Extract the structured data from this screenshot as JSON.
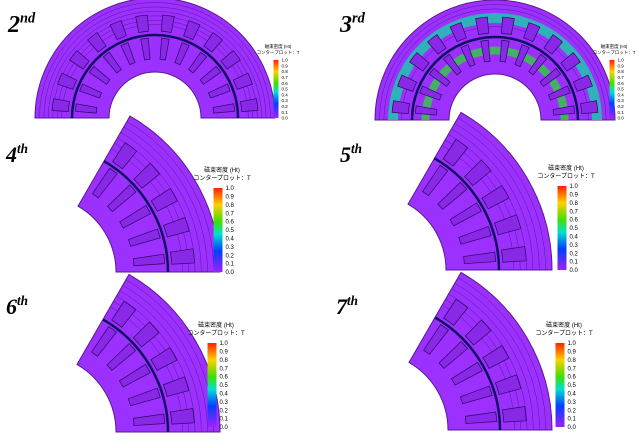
{
  "panels": [
    {
      "number": "2",
      "suffix": "nd"
    },
    {
      "number": "3",
      "suffix": "rd"
    },
    {
      "number": "4",
      "suffix": "th"
    },
    {
      "number": "5",
      "suffix": "th"
    },
    {
      "number": "6",
      "suffix": "th"
    },
    {
      "number": "7",
      "suffix": "th"
    }
  ],
  "legend": {
    "title": "磁束密度 (Ht)",
    "unit": "コンタープロット：T",
    "ticks": [
      {
        "value": 1.0,
        "label": "1.0"
      },
      {
        "value": 0.9,
        "label": "0.9"
      },
      {
        "value": 0.8,
        "label": "0.8"
      },
      {
        "value": 0.7,
        "label": "0.7"
      },
      {
        "value": 0.6,
        "label": "0.6"
      },
      {
        "value": 0.5,
        "label": "0.5"
      },
      {
        "value": 0.4,
        "label": "0.4"
      },
      {
        "value": 0.3,
        "label": "0.3"
      },
      {
        "value": 0.2,
        "label": "0.2"
      },
      {
        "value": 0.1,
        "label": "0.1"
      },
      {
        "value": 0.0,
        "label": "0.0"
      }
    ]
  }
}
